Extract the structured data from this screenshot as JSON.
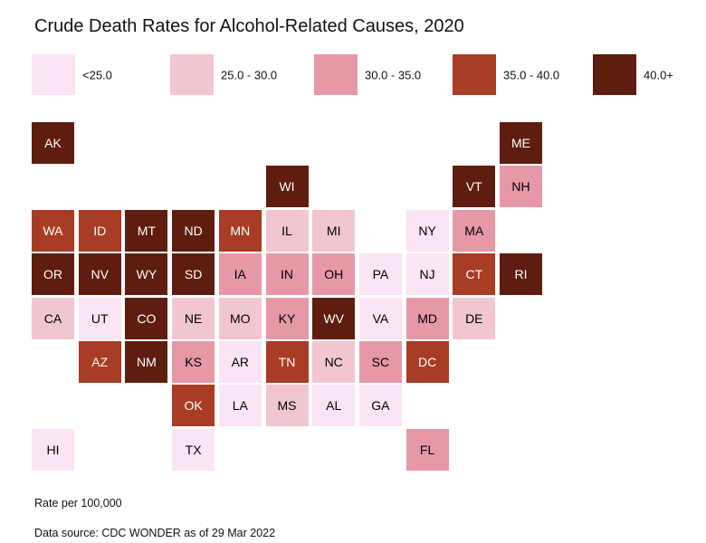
{
  "chart_data": {
    "type": "tile-choropleth",
    "title": "Crude Death Rates for Alcohol-Related Causes, 2020",
    "unit_note": "Rate per 100,000",
    "source": "Data source: CDC WONDER as of 29 Mar 2022",
    "legend_position": "top",
    "bins": [
      {
        "label": "<25.0",
        "color": "#fbe4f3",
        "text_color": "#000000"
      },
      {
        "label": "25.0 - 30.0",
        "color": "#f2c6d1",
        "text_color": "#000000"
      },
      {
        "label": "30.0 - 35.0",
        "color": "#e698a6",
        "text_color": "#000000"
      },
      {
        "label": "35.0 - 40.0",
        "color": "#a83c24",
        "text_color": "#ffffff"
      },
      {
        "label": "40.0+",
        "color": "#5e1d0e",
        "text_color": "#ffffff"
      }
    ],
    "states": [
      {
        "abbr": "AK",
        "row": 0,
        "col": 0,
        "bin": 4
      },
      {
        "abbr": "ME",
        "row": 0,
        "col": 10,
        "bin": 4
      },
      {
        "abbr": "WI",
        "row": 1,
        "col": 5,
        "bin": 4
      },
      {
        "abbr": "VT",
        "row": 1,
        "col": 9,
        "bin": 4
      },
      {
        "abbr": "NH",
        "row": 1,
        "col": 10,
        "bin": 2
      },
      {
        "abbr": "WA",
        "row": 2,
        "col": 0,
        "bin": 3
      },
      {
        "abbr": "ID",
        "row": 2,
        "col": 1,
        "bin": 3
      },
      {
        "abbr": "MT",
        "row": 2,
        "col": 2,
        "bin": 4
      },
      {
        "abbr": "ND",
        "row": 2,
        "col": 3,
        "bin": 4
      },
      {
        "abbr": "MN",
        "row": 2,
        "col": 4,
        "bin": 3
      },
      {
        "abbr": "IL",
        "row": 2,
        "col": 5,
        "bin": 1
      },
      {
        "abbr": "MI",
        "row": 2,
        "col": 6,
        "bin": 1
      },
      {
        "abbr": "NY",
        "row": 2,
        "col": 8,
        "bin": 0
      },
      {
        "abbr": "MA",
        "row": 2,
        "col": 9,
        "bin": 2
      },
      {
        "abbr": "OR",
        "row": 3,
        "col": 0,
        "bin": 4
      },
      {
        "abbr": "NV",
        "row": 3,
        "col": 1,
        "bin": 4
      },
      {
        "abbr": "WY",
        "row": 3,
        "col": 2,
        "bin": 4
      },
      {
        "abbr": "SD",
        "row": 3,
        "col": 3,
        "bin": 4
      },
      {
        "abbr": "IA",
        "row": 3,
        "col": 4,
        "bin": 2
      },
      {
        "abbr": "IN",
        "row": 3,
        "col": 5,
        "bin": 2
      },
      {
        "abbr": "OH",
        "row": 3,
        "col": 6,
        "bin": 2
      },
      {
        "abbr": "PA",
        "row": 3,
        "col": 7,
        "bin": 0
      },
      {
        "abbr": "NJ",
        "row": 3,
        "col": 8,
        "bin": 0
      },
      {
        "abbr": "CT",
        "row": 3,
        "col": 9,
        "bin": 3
      },
      {
        "abbr": "RI",
        "row": 3,
        "col": 10,
        "bin": 4
      },
      {
        "abbr": "CA",
        "row": 4,
        "col": 0,
        "bin": 1
      },
      {
        "abbr": "UT",
        "row": 4,
        "col": 1,
        "bin": 0
      },
      {
        "abbr": "CO",
        "row": 4,
        "col": 2,
        "bin": 4
      },
      {
        "abbr": "NE",
        "row": 4,
        "col": 3,
        "bin": 1
      },
      {
        "abbr": "MO",
        "row": 4,
        "col": 4,
        "bin": 1
      },
      {
        "abbr": "KY",
        "row": 4,
        "col": 5,
        "bin": 2
      },
      {
        "abbr": "WV",
        "row": 4,
        "col": 6,
        "bin": 4
      },
      {
        "abbr": "VA",
        "row": 4,
        "col": 7,
        "bin": 0
      },
      {
        "abbr": "MD",
        "row": 4,
        "col": 8,
        "bin": 2
      },
      {
        "abbr": "DE",
        "row": 4,
        "col": 9,
        "bin": 1
      },
      {
        "abbr": "AZ",
        "row": 5,
        "col": 1,
        "bin": 3
      },
      {
        "abbr": "NM",
        "row": 5,
        "col": 2,
        "bin": 4
      },
      {
        "abbr": "KS",
        "row": 5,
        "col": 3,
        "bin": 2
      },
      {
        "abbr": "AR",
        "row": 5,
        "col": 4,
        "bin": 0
      },
      {
        "abbr": "TN",
        "row": 5,
        "col": 5,
        "bin": 3
      },
      {
        "abbr": "NC",
        "row": 5,
        "col": 6,
        "bin": 1
      },
      {
        "abbr": "SC",
        "row": 5,
        "col": 7,
        "bin": 2
      },
      {
        "abbr": "DC",
        "row": 5,
        "col": 8,
        "bin": 3
      },
      {
        "abbr": "OK",
        "row": 6,
        "col": 3,
        "bin": 3
      },
      {
        "abbr": "LA",
        "row": 6,
        "col": 4,
        "bin": 0
      },
      {
        "abbr": "MS",
        "row": 6,
        "col": 5,
        "bin": 1
      },
      {
        "abbr": "AL",
        "row": 6,
        "col": 6,
        "bin": 0
      },
      {
        "abbr": "GA",
        "row": 6,
        "col": 7,
        "bin": 0
      },
      {
        "abbr": "HI",
        "row": 7,
        "col": 0,
        "bin": 0
      },
      {
        "abbr": "TX",
        "row": 7,
        "col": 3,
        "bin": 0
      },
      {
        "abbr": "FL",
        "row": 7,
        "col": 8,
        "bin": 2
      }
    ]
  }
}
